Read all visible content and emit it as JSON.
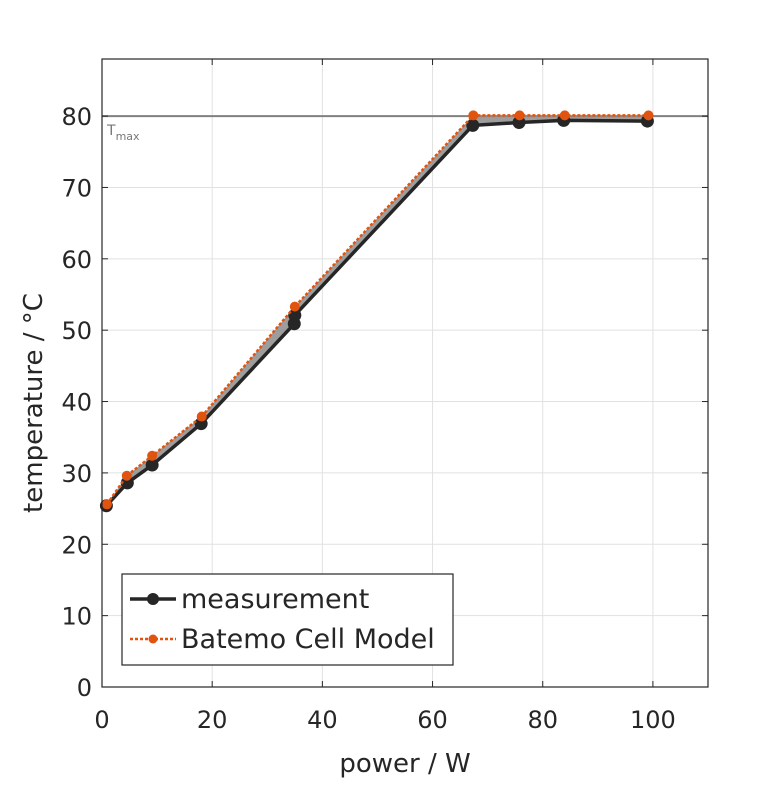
{
  "chart_data": {
    "type": "line",
    "xlabel": "power / W",
    "ylabel": "temperature / °C",
    "xlim": [
      0,
      110
    ],
    "ylim": [
      0,
      88
    ],
    "xticks": [
      0,
      20,
      40,
      60,
      80,
      100
    ],
    "yticks": [
      0,
      10,
      20,
      30,
      40,
      50,
      60,
      70,
      80
    ],
    "grid": true,
    "legend_position": "bottom-left",
    "reference_line": {
      "y": 80,
      "label": "T",
      "label_sub": "max",
      "color": "#808080"
    },
    "series": [
      {
        "name": "measurement",
        "color": "#262626",
        "style": "solid",
        "marker": "circle",
        "points": [
          [
            0.8,
            25.4
          ],
          [
            4.6,
            28.6
          ],
          [
            9.1,
            31.1
          ],
          [
            18.0,
            36.9
          ],
          [
            34.9,
            50.9
          ],
          [
            35.0,
            52.1
          ],
          [
            67.3,
            78.7
          ],
          [
            75.7,
            79.1
          ],
          [
            83.8,
            79.4
          ],
          [
            99.0,
            79.3
          ]
        ]
      },
      {
        "name": "Batemo Cell Model",
        "color": "#e0540f",
        "style": "dotted",
        "marker": "circle",
        "points": [
          [
            0.9,
            25.6
          ],
          [
            4.5,
            29.6
          ],
          [
            9.1,
            32.4
          ],
          [
            18.1,
            37.9
          ],
          [
            35.0,
            53.3
          ],
          [
            67.4,
            80.1
          ],
          [
            75.8,
            80.1
          ],
          [
            84.0,
            80.1
          ],
          [
            99.2,
            80.1
          ]
        ]
      }
    ],
    "band_fill_color": "#8c8c8c"
  }
}
